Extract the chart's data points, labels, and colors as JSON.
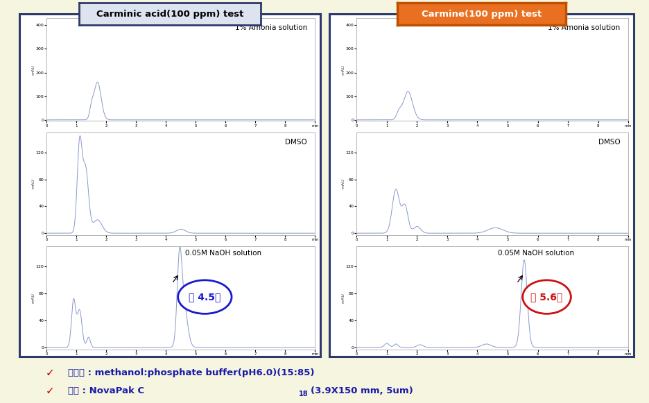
{
  "title_left": "Carminic acid(100 ppm) test",
  "title_right": "Carmine(100 ppm) test",
  "title_left_facecolor": "#dde4f0",
  "title_left_edgecolor": "#2d3a6b",
  "title_right_facecolor": "#e87020",
  "title_right_edgecolor": "#c05000",
  "panel_edgecolor": "#2d3a6b",
  "label_ammonia": "1% Amonia solution",
  "label_dmso": "DMSO",
  "label_naoh": "0.05M NaOH solution",
  "annotation_left": "약 4.5분",
  "annotation_right": "약 5.6분",
  "annotation_left_color": "#1a1acc",
  "annotation_right_color": "#cc1111",
  "footer_line1": "이동상 : methanol:phosphate buffer(pH6.0)(15:85)",
  "footer_line2_pre": "콜럼 : NovaPak C",
  "footer_line2_sub": "18",
  "footer_line2_post": "(3.9X150 mm, 5um)",
  "footer_color": "#1a1aaa",
  "check_color": "#cc0000",
  "fig_facecolor": "#f5f5e0",
  "panel_facecolor": "#ffffff",
  "line_color": "#8899cc",
  "xmax": 9.0,
  "xmin": 0.0
}
